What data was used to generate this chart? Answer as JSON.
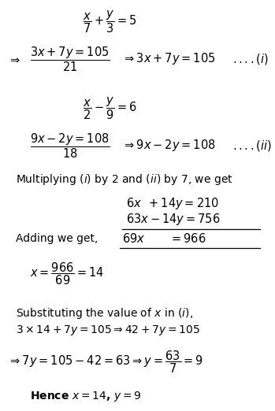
{
  "bg_color": "#ffffff",
  "figsize": [
    3.49,
    5.22
  ],
  "dpi": 100,
  "fs": 10.5,
  "fs_small": 10.0
}
